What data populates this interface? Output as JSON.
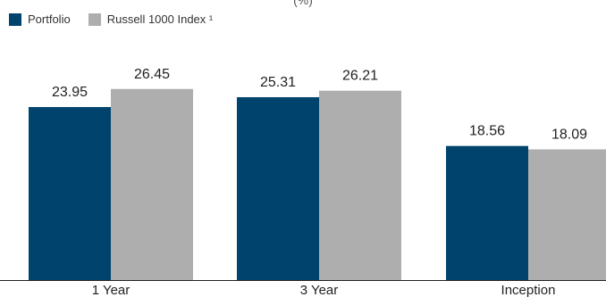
{
  "chart_data": {
    "type": "bar",
    "title": "(%)",
    "categories": [
      "1 Year",
      "3 Year",
      "Inception"
    ],
    "series": [
      {
        "name": "Portfolio",
        "values": [
          23.95,
          25.31,
          18.56
        ],
        "color": "#00446e"
      },
      {
        "name": "Russell 1000 Index ¹",
        "values": [
          26.45,
          26.21,
          18.09
        ],
        "color": "#aeaeae"
      }
    ],
    "ylim": [
      0,
      30
    ],
    "grid": false,
    "legend_position": "top-left",
    "axis_color": "#222222"
  }
}
